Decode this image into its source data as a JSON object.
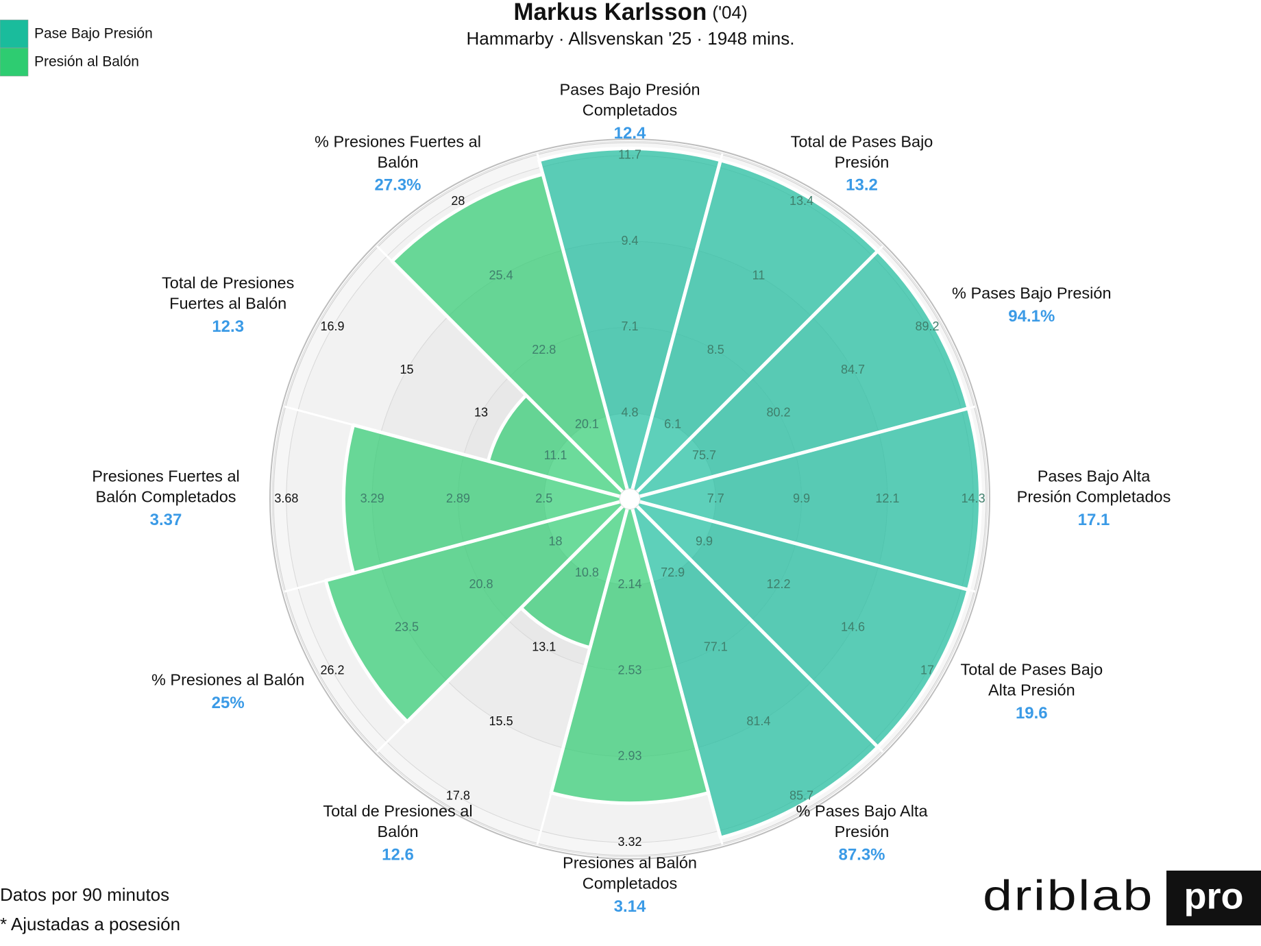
{
  "chart_data": {
    "type": "pizza",
    "title": "Markus Karlsson",
    "title_suffix": "('04)",
    "subtitle": "Hammarby · Allsvenskan '25 · 1948 mins.",
    "footnotes": [
      "Datos por 90 minutos",
      "* Ajustadas a posesión"
    ],
    "brand": {
      "name": "driblab",
      "tag": "pro"
    },
    "series": [
      {
        "name": "Pase Bajo Presión",
        "color": "#1abc9c"
      },
      {
        "name": "Presión al Balón",
        "color": "#2ecc71"
      }
    ],
    "rlim": [
      0,
      100
    ],
    "slices": [
      {
        "label": [
          "Pases Bajo Presión",
          "Completados"
        ],
        "value": 12.4,
        "value_label": "12.4",
        "percentile": 98,
        "series": 0,
        "ticks": [
          4.8,
          7.1,
          9.4,
          11.7
        ]
      },
      {
        "label": [
          "Total de Pases Bajo",
          "Presión"
        ],
        "value": 13.2,
        "value_label": "13.2",
        "percentile": 98,
        "series": 0,
        "ticks": [
          6.1,
          8.5,
          11,
          13.4
        ]
      },
      {
        "label": [
          "% Pases Bajo Presión"
        ],
        "value": 94.1,
        "value_label": "94.1%",
        "percentile": 98,
        "series": 0,
        "ticks": [
          75.7,
          80.2,
          84.7,
          89.2
        ]
      },
      {
        "label": [
          "Pases Bajo Alta",
          "Presión Completados"
        ],
        "value": 17.1,
        "value_label": "17.1",
        "percentile": 98,
        "series": 0,
        "ticks": [
          7.7,
          9.9,
          12.1,
          14.3
        ]
      },
      {
        "label": [
          "Total de Pases Bajo",
          "Alta Presión"
        ],
        "value": 19.6,
        "value_label": "19.6",
        "percentile": 98,
        "series": 0,
        "ticks": [
          9.9,
          12.2,
          14.6,
          17
        ]
      },
      {
        "label": [
          "% Pases Bajo Alta",
          "Presión"
        ],
        "value": 87.3,
        "value_label": "87.3%",
        "percentile": 98,
        "series": 0,
        "ticks": [
          72.9,
          77.1,
          81.4,
          85.7
        ]
      },
      {
        "label": [
          "Presiones al Balón",
          "Completados"
        ],
        "value": 3.14,
        "value_label": "3.14",
        "percentile": 85,
        "series": 1,
        "ticks": [
          2.14,
          2.53,
          2.93,
          3.32
        ]
      },
      {
        "label": [
          "Total de Presiones al",
          "Balón"
        ],
        "value": 12.6,
        "value_label": "12.6",
        "percentile": 43,
        "series": 1,
        "ticks": [
          10.8,
          13.1,
          15.5,
          17.8
        ]
      },
      {
        "label": [
          "% Presiones al Balón"
        ],
        "value": 25,
        "value_label": "25%",
        "percentile": 88,
        "series": 1,
        "ticks": [
          18,
          20.8,
          23.5,
          26.2
        ]
      },
      {
        "label": [
          "Presiones Fuertes al",
          "Balón Completados"
        ],
        "value": 3.37,
        "value_label": "3.37",
        "percentile": 80,
        "series": 1,
        "ticks": [
          2.5,
          2.89,
          3.29,
          3.68
        ]
      },
      {
        "label": [
          "Total de Presiones",
          "Fuertes al Balón"
        ],
        "value": 12.3,
        "value_label": "12.3",
        "percentile": 41,
        "series": 1,
        "ticks": [
          11.1,
          13,
          15,
          16.9
        ]
      },
      {
        "label": [
          "% Presiones Fuertes al",
          "Balón"
        ],
        "value": 27.3,
        "value_label": "27.3%",
        "percentile": 94,
        "series": 1,
        "ticks": [
          20.1,
          22.8,
          25.4,
          28
        ]
      }
    ]
  }
}
